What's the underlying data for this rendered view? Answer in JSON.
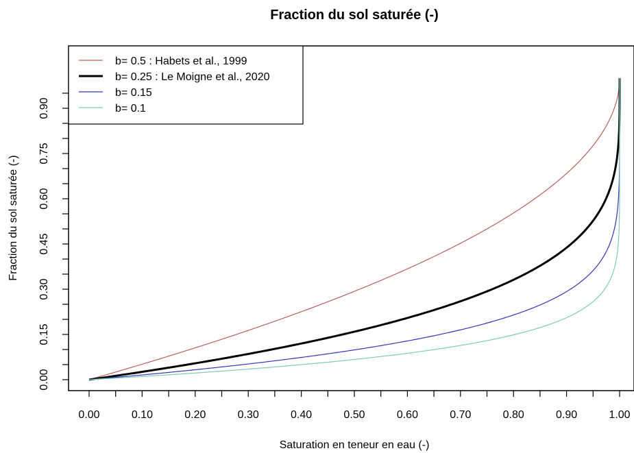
{
  "chart_data": {
    "type": "line",
    "title": "Fraction du sol saturée (-)",
    "xlabel": "Saturation en teneur en eau (-)",
    "ylabel": "Fraction du sol saturée (-)",
    "xlim": [
      0,
      1
    ],
    "ylim": [
      0,
      1
    ],
    "x_ticks": [
      0.0,
      0.1,
      0.2,
      0.3,
      0.4,
      0.5,
      0.6,
      0.7,
      0.8,
      0.9,
      1.0
    ],
    "x_tick_labels": [
      "0.00",
      "0.10",
      "0.20",
      "0.30",
      "0.40",
      "0.50",
      "0.60",
      "0.70",
      "0.80",
      "0.90",
      "1.00"
    ],
    "x_minor_ticks": [
      0.05,
      0.15,
      0.25,
      0.35,
      0.45,
      0.55,
      0.65,
      0.75,
      0.85,
      0.95
    ],
    "y_ticks": [
      0.0,
      0.15,
      0.3,
      0.45,
      0.6,
      0.75,
      0.9
    ],
    "y_tick_labels": [
      "0.00",
      "0.15",
      "0.30",
      "0.45",
      "0.60",
      "0.75",
      "0.90"
    ],
    "y_minor_ticks": [
      0.05,
      0.1,
      0.2,
      0.25,
      0.35,
      0.4,
      0.5,
      0.55,
      0.65,
      0.7,
      0.8,
      0.85,
      0.95
    ],
    "legend_position": "top-left",
    "grid": false,
    "formula": "y = 1 - (1 - x)^b",
    "series": [
      {
        "name": "b= 0.5 : Habets et al., 1999",
        "b": 0.5,
        "color": "#b5605a",
        "x": [
          0,
          0.1,
          0.2,
          0.3,
          0.4,
          0.5,
          0.6,
          0.7,
          0.8,
          0.9,
          0.95,
          0.99,
          1.0
        ],
        "y": [
          0,
          0.051,
          0.106,
          0.163,
          0.225,
          0.293,
          0.368,
          0.452,
          0.553,
          0.684,
          0.776,
          0.9,
          1.0
        ]
      },
      {
        "name": "b= 0.25 : Le Moigne et al., 2020",
        "b": 0.25,
        "color": "#000000",
        "x": [
          0,
          0.1,
          0.2,
          0.3,
          0.4,
          0.5,
          0.6,
          0.7,
          0.8,
          0.9,
          0.95,
          0.99,
          1.0
        ],
        "y": [
          0,
          0.026,
          0.054,
          0.085,
          0.12,
          0.159,
          0.205,
          0.26,
          0.331,
          0.438,
          0.527,
          0.684,
          1.0
        ]
      },
      {
        "name": "b= 0.15",
        "b": 0.15,
        "color": "#3333bb",
        "x": [
          0,
          0.1,
          0.2,
          0.3,
          0.4,
          0.5,
          0.6,
          0.7,
          0.8,
          0.9,
          0.95,
          0.99,
          1.0
        ],
        "y": [
          0,
          0.016,
          0.033,
          0.052,
          0.074,
          0.099,
          0.128,
          0.165,
          0.215,
          0.292,
          0.362,
          0.499,
          1.0
        ]
      },
      {
        "name": "b= 0.1",
        "b": 0.1,
        "color": "#7ecbb5",
        "x": [
          0,
          0.1,
          0.2,
          0.3,
          0.4,
          0.5,
          0.6,
          0.7,
          0.8,
          0.9,
          0.95,
          0.99,
          1.0
        ],
        "y": [
          0,
          0.01,
          0.022,
          0.035,
          0.05,
          0.067,
          0.088,
          0.113,
          0.149,
          0.206,
          0.259,
          0.369,
          1.0
        ]
      }
    ]
  }
}
